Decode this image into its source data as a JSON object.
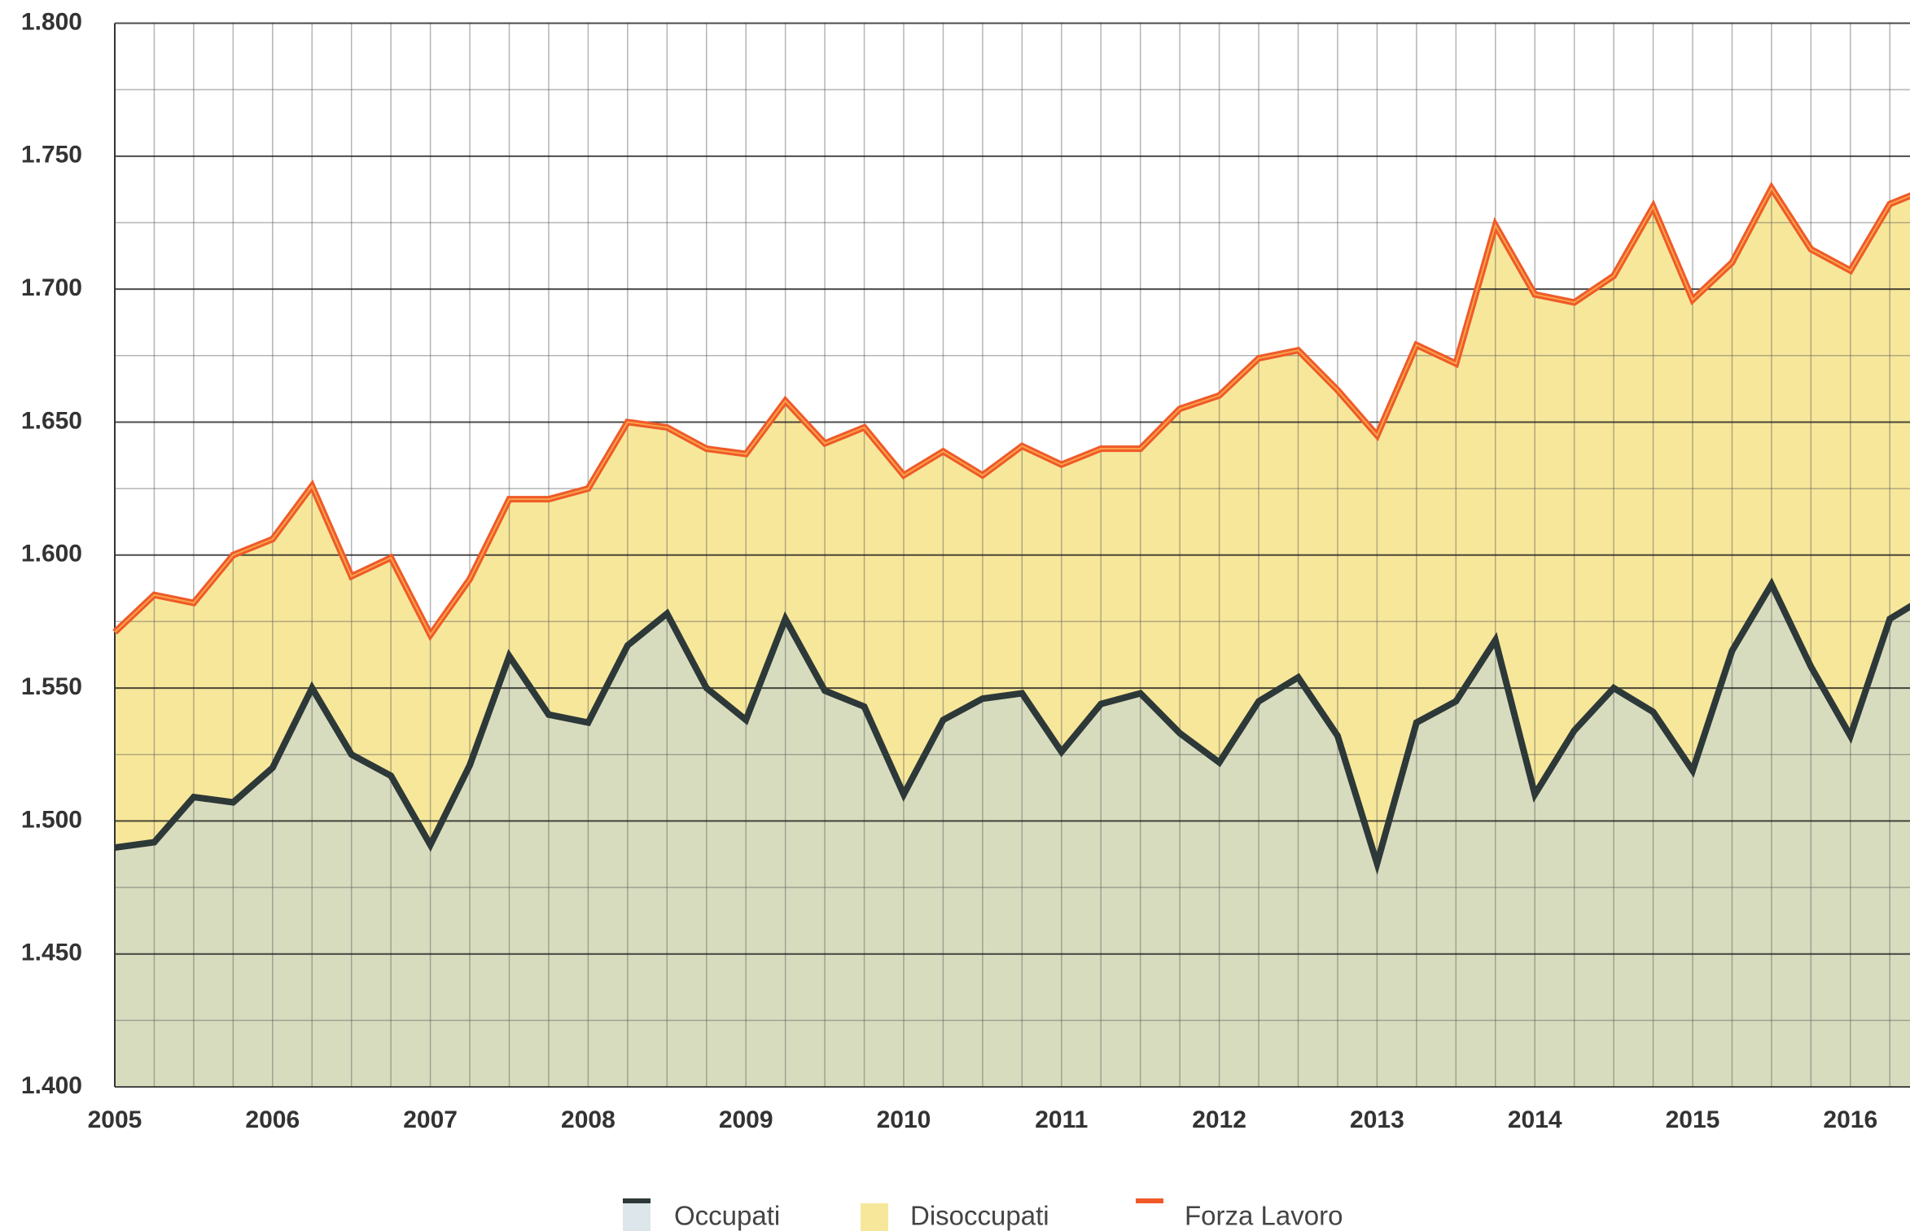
{
  "chart_data": {
    "type": "area",
    "categories": [
      "2005",
      null,
      null,
      null,
      "2006",
      null,
      null,
      null,
      "2007",
      null,
      null,
      null,
      "2008",
      null,
      null,
      null,
      "2009",
      null,
      null,
      null,
      "2010",
      null,
      null,
      null,
      "2011",
      null,
      null,
      null,
      "2012",
      null,
      null,
      null,
      "2013",
      null,
      null,
      null,
      "2014",
      null,
      null,
      null,
      "2015",
      null,
      null,
      null,
      "2016",
      null,
      null
    ],
    "series": [
      {
        "name": "Occupati",
        "color": "#2d3838",
        "fill": "#d8dcbe",
        "values": [
          1490,
          1492,
          1509,
          1507,
          1520,
          1550,
          1525,
          1517,
          1491,
          1521,
          1562,
          1540,
          1537,
          1566,
          1578,
          1550,
          1538,
          1576,
          1549,
          1543,
          1510,
          1538,
          1546,
          1548,
          1526,
          1544,
          1548,
          1533,
          1522,
          1545,
          1554,
          1532,
          1484,
          1537,
          1545,
          1568,
          1510,
          1534,
          1550,
          1541,
          1519,
          1564,
          1589,
          1558,
          1532,
          1576,
          1585
        ]
      },
      {
        "name": "Disoccupati",
        "fill": "#f7e79a",
        "values": [
          81,
          93,
          73,
          93,
          86,
          76,
          67,
          82,
          79,
          70,
          59,
          81,
          88,
          84,
          70,
          90,
          100,
          82,
          93,
          105,
          120,
          101,
          84,
          93,
          108,
          96,
          92,
          122,
          138,
          129,
          123,
          130,
          161,
          142,
          127,
          156,
          188,
          161,
          155,
          190,
          177,
          146,
          149,
          157,
          175,
          156,
          153
        ]
      },
      {
        "name": "Forza Lavoro",
        "color": "#ef5a28",
        "values": [
          1571,
          1585,
          1582,
          1600,
          1606,
          1626,
          1592,
          1599,
          1570,
          1591,
          1621,
          1621,
          1625,
          1650,
          1648,
          1640,
          1638,
          1658,
          1642,
          1648,
          1630,
          1639,
          1630,
          1641,
          1634,
          1640,
          1640,
          1655,
          1660,
          1674,
          1677,
          1662,
          1645,
          1679,
          1672,
          1724,
          1698,
          1695,
          1705,
          1731,
          1696,
          1710,
          1738,
          1715,
          1707,
          1732,
          1738
        ]
      }
    ],
    "ylim": [
      1400,
      1800
    ],
    "yticks": [
      {
        "value": 1400,
        "label": "1.400"
      },
      {
        "value": 1450,
        "label": "1.450"
      },
      {
        "value": 1500,
        "label": "1.500"
      },
      {
        "value": 1550,
        "label": "1.550"
      },
      {
        "value": 1600,
        "label": "1.600"
      },
      {
        "value": 1650,
        "label": "1.650"
      },
      {
        "value": 1700,
        "label": "1.700"
      },
      {
        "value": 1750,
        "label": "1.750"
      },
      {
        "value": 1800,
        "label": "1.800"
      }
    ],
    "grid": true,
    "legend": "bottom"
  }
}
